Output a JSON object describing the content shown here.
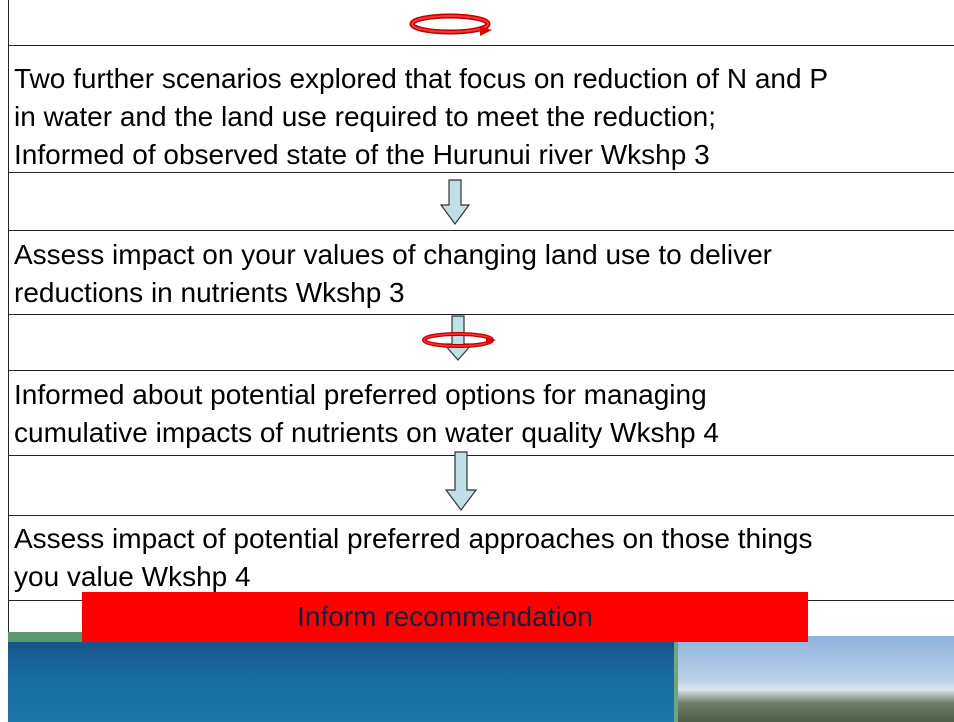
{
  "steps": [
    {
      "lines": [
        "Two further scenarios explored that focus on reduction of N and P",
        "in water and the land use required to meet the reduction;",
        "Informed of observed state of the Hurunui river Wkshp 3"
      ]
    },
    {
      "lines": [
        "Assess impact on your values of changing land use to deliver",
        "reductions in nutrients Wkshp 3"
      ]
    },
    {
      "lines": [
        "Informed about potential preferred options for managing",
        "cumulative impacts of nutrients on water quality Wkshp 4"
      ]
    },
    {
      "lines": [
        "Assess impact of potential preferred approaches on those things",
        "you value Wkshp 4"
      ]
    }
  ],
  "banner": "Inform recommendation"
}
